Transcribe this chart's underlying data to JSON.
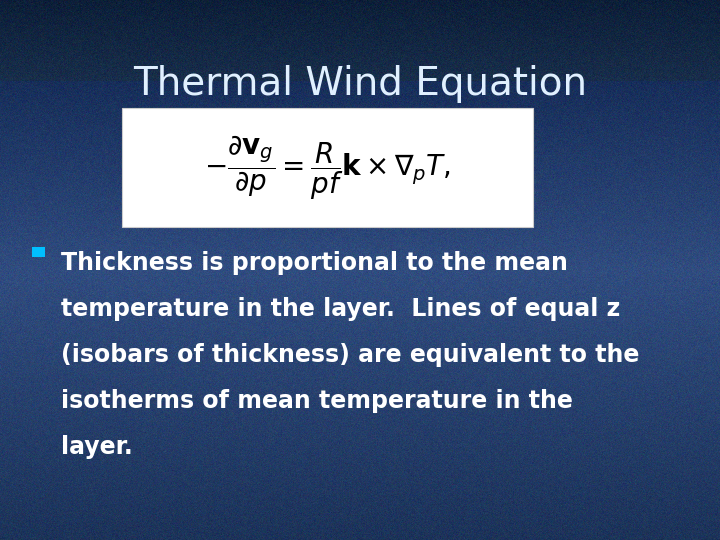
{
  "title": "Thermal Wind Equation",
  "title_color": "#E0F0FF",
  "title_fontsize": 28,
  "bg_color": "#1e4a8a",
  "equation": "$-\\dfrac{\\partial \\mathbf{v}_g}{\\partial p} = \\dfrac{R}{pf}\\mathbf{k} \\times \\nabla_p T,$",
  "equation_fontsize": 20,
  "bullet_color": "#00BFFF",
  "bullet_text_lines": [
    "Thickness is proportional to the mean",
    "temperature in the layer.  Lines of equal z",
    "(isobars of thickness) are equivalent to the",
    "isotherms of mean temperature in the",
    "layer."
  ],
  "bullet_fontsize": 17,
  "bullet_text_color": "#FFFFFF",
  "equation_box_color": "#FFFFFF",
  "fig_width": 7.2,
  "fig_height": 5.4,
  "dpi": 100
}
